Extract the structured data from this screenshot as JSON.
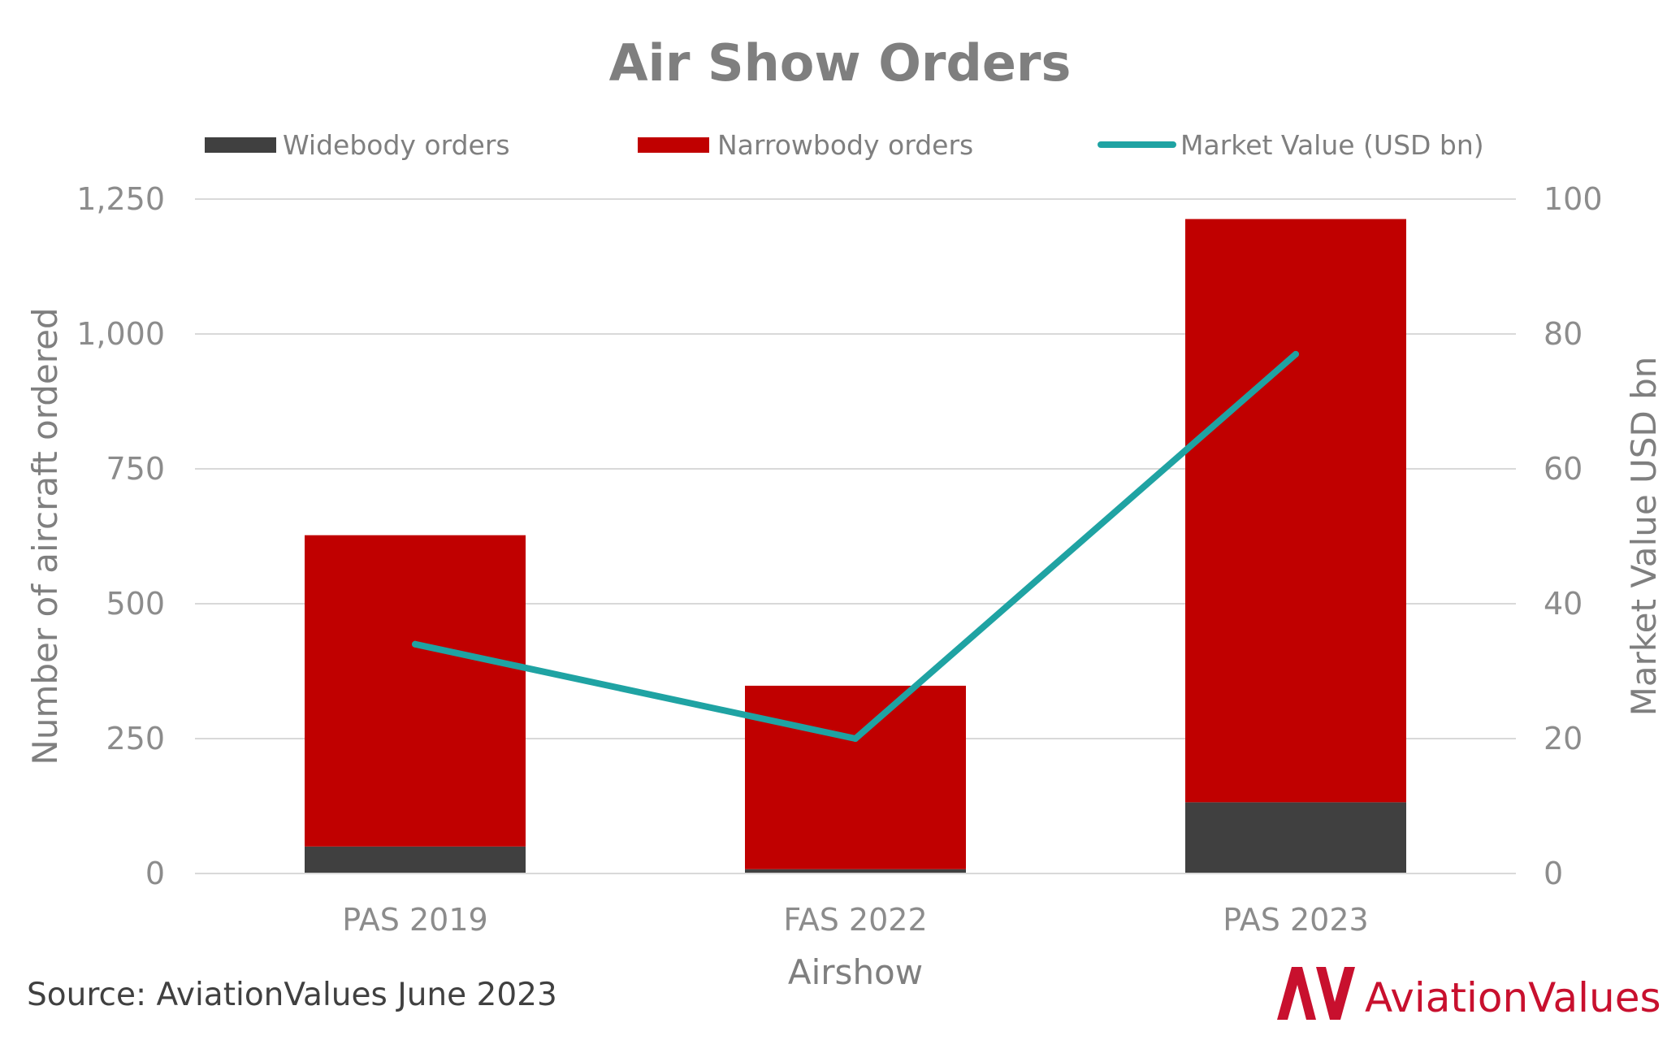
{
  "chart_data": {
    "type": "bar",
    "stacked": true,
    "title": "Air Show Orders",
    "xlabel": "Airshow",
    "ylabel": "Number of aircraft ordered",
    "y2label": "Market Value USD bn",
    "categories": [
      "PAS 2019",
      "FAS 2022",
      "PAS 2023"
    ],
    "ylim": [
      0,
      1250
    ],
    "y2lim": [
      0,
      100
    ],
    "yticks": [
      "0",
      "250",
      "500",
      "750",
      "1,000",
      "1,250"
    ],
    "y2ticks": [
      "0",
      "20",
      "40",
      "60",
      "80",
      "100"
    ],
    "grid": true,
    "legend_position": "top",
    "series": [
      {
        "name": "Widebody orders",
        "type": "bar",
        "axis": "left",
        "color": "#404040",
        "values": [
          50,
          8,
          132
        ]
      },
      {
        "name": "Narrowbody orders",
        "type": "bar",
        "axis": "left",
        "color": "#c00000",
        "values": [
          577,
          340,
          1081
        ]
      },
      {
        "name": "Market Value (USD bn)",
        "type": "line",
        "axis": "right",
        "color": "#1fa3a3",
        "values": [
          34,
          20,
          77
        ]
      }
    ]
  },
  "source": "Source: AviationValues June 2023",
  "logo": {
    "text": "AviationValues",
    "color": "#c8102e"
  }
}
